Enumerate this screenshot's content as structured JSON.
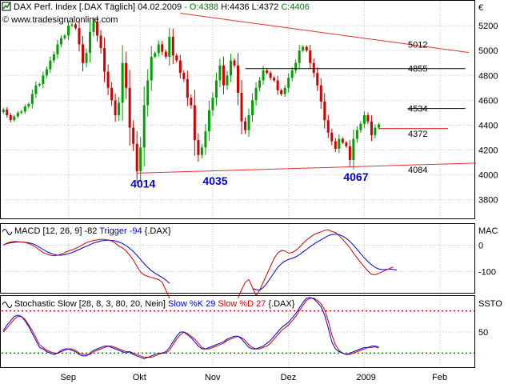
{
  "header": {
    "icon": "chart-logo-icon",
    "title": "DAX Perf. Index [.DAX  Täglich] 04.02.2009",
    "open": "- O:4388",
    "high": "H:4436",
    "low": "L:4372",
    "close": "C:4406",
    "website": "© www.tradesignalonline.com",
    "currency": "€"
  },
  "colors": {
    "up_candle": "#00a000",
    "down_candle": "#d00000",
    "trendline": "#e03030",
    "hline": "#000000",
    "macd": "#d00000",
    "trigger": "#0000d0",
    "k_line": "#0000d0",
    "d_line": "#d00000",
    "grid": "#c8c8c8",
    "low_label": "#0000cc",
    "thresh_red": "#d00000",
    "thresh_green": "#008000"
  },
  "chart_data": [
    {
      "type": "candlestick",
      "title": "DAX Perf. Index [.DAX  Täglich] 04.02.2009",
      "ylabel": "€",
      "ylim": [
        3650,
        5400
      ],
      "yticks": [
        "3800",
        "4000",
        "4200",
        "4400",
        "4600",
        "4800",
        "5000",
        "5200"
      ],
      "ytick_values": [
        3800,
        4000,
        4200,
        4400,
        4600,
        4800,
        5000,
        5200
      ],
      "xticks": [
        "Sep",
        "Okt",
        "Nov",
        "Dez",
        "2009",
        "Feb"
      ],
      "xtick_index": [
        18,
        38,
        58,
        79,
        100,
        121
      ],
      "close": [
        4525,
        4480,
        4440,
        4470,
        4500,
        4510,
        4550,
        4570,
        4650,
        4720,
        4730,
        4800,
        4850,
        4920,
        4970,
        5050,
        5100,
        5120,
        5200,
        5210,
        5180,
        5050,
        4900,
        4980,
        5150,
        5230,
        5120,
        5020,
        4830,
        4700,
        4600,
        4480,
        4580,
        4900,
        4700,
        4380,
        4250,
        4030,
        4220,
        4560,
        4760,
        4950,
        4980,
        5050,
        4990,
        4950,
        5110,
        4960,
        4920,
        4820,
        4770,
        4620,
        4560,
        4280,
        4160,
        4220,
        4350,
        4520,
        4620,
        4760,
        4880,
        4720,
        4800,
        4920,
        4880,
        4660,
        4430,
        4360,
        4480,
        4600,
        4700,
        4760,
        4840,
        4820,
        4780,
        4760,
        4680,
        4650,
        4700,
        4780,
        4840,
        4900,
        5000,
        5030,
        5000,
        4900,
        4820,
        4720,
        4590,
        4440,
        4340,
        4270,
        4210,
        4290,
        4260,
        4230,
        4120,
        4290,
        4360,
        4410,
        4480,
        4430,
        4320,
        4380,
        4406
      ],
      "events": [
        {
          "i": 37,
          "value": 4014,
          "label": "4014"
        },
        {
          "i": 57,
          "value": 4035,
          "label": "4035"
        },
        {
          "i": 96,
          "value": 4067,
          "label": "4067"
        }
      ],
      "trendlines": [
        {
          "x0": 49,
          "y0": 5300,
          "x1": 129,
          "y1": 4984,
          "label": "5012"
        },
        {
          "x0": 37,
          "y0": 4014,
          "x1": 131,
          "y1": 4095,
          "label": "4084"
        }
      ],
      "hlines": [
        {
          "x0": 67,
          "x1": 128,
          "y": 4855,
          "label": "4855"
        },
        {
          "x0": 112,
          "x1": 128,
          "y": 4534,
          "label": "4534"
        }
      ],
      "close_marker": {
        "value": 4372,
        "label": "4372"
      }
    },
    {
      "type": "line",
      "title": "MACD [12, 26, 9] -82 Trigger -94 {.DAX}",
      "ylabel": "MAC",
      "ylim": [
        -180,
        80
      ],
      "yticks": [
        "0",
        "-100"
      ],
      "ytick_values": [
        0,
        -100
      ],
      "series": [
        {
          "name": "MACD [12, 26, 9] -82",
          "values": [
            0,
            8,
            12,
            14,
            13,
            12,
            10,
            6,
            0,
            -8,
            -18,
            -28,
            -34,
            -38,
            -40,
            -38,
            -34,
            -28,
            -22,
            -18,
            -12,
            -6,
            2,
            10,
            14,
            18,
            20,
            22,
            22,
            20,
            16,
            8,
            -4,
            -10,
            -22,
            -38,
            -56,
            -80,
            -102,
            -112,
            -118,
            -122,
            -126,
            -130,
            -140,
            -170,
            -200,
            null,
            null,
            null,
            null,
            null,
            null,
            null,
            null,
            null,
            null,
            null,
            null,
            null,
            null,
            null,
            null,
            null,
            null,
            -200,
            -168,
            -140,
            -130,
            -160,
            -190,
            -170,
            -140,
            -110,
            -80,
            -50,
            -30,
            -20,
            -22,
            -30,
            -28,
            -20,
            -8,
            6,
            20,
            30,
            40,
            46,
            50,
            56,
            58,
            52,
            48,
            36,
            22,
            6,
            -10,
            -30,
            -48,
            -66,
            -82,
            -98,
            -110,
            -112,
            -106,
            -100,
            -94,
            -88,
            -82
          ]
        },
        {
          "name": "Trigger -94",
          "values": [
            0,
            6,
            9,
            11,
            12,
            12,
            11,
            9,
            6,
            0,
            -8,
            -16,
            -24,
            -30,
            -35,
            -38,
            -38,
            -36,
            -32,
            -28,
            -22,
            -16,
            -10,
            -4,
            2,
            8,
            12,
            16,
            18,
            19,
            18,
            16,
            12,
            6,
            -2,
            -12,
            -24,
            -38,
            -54,
            -70,
            -84,
            -96,
            -106,
            -114,
            -122,
            -132,
            -144,
            null,
            null,
            null,
            null,
            null,
            null,
            null,
            null,
            null,
            null,
            null,
            null,
            null,
            null,
            null,
            null,
            null,
            null,
            null,
            null,
            null,
            null,
            -164,
            -168,
            -170,
            -160,
            -144,
            -124,
            -104,
            -84,
            -70,
            -60,
            -54,
            -50,
            -44,
            -36,
            -26,
            -16,
            -6,
            4,
            12,
            20,
            28,
            36,
            40,
            42,
            40,
            34,
            26,
            14,
            0,
            -16,
            -32,
            -48,
            -62,
            -74,
            -84,
            -90,
            -92,
            -92,
            -90,
            -92,
            -94
          ]
        }
      ]
    },
    {
      "type": "line",
      "title": "Stochastic Slow [28, 8, 3, 80, 20, Nein] Slow %K 29 Slow %D 27 {.DAX}",
      "ylabel": "SSTO",
      "ylim": [
        0,
        100
      ],
      "yticks": [
        "50"
      ],
      "ytick_values": [
        50
      ],
      "thresholds": [
        {
          "value": 80,
          "color": "thresh_red"
        },
        {
          "value": 20,
          "color": "thresh_green"
        }
      ],
      "series": [
        {
          "name": "Slow %K 29",
          "values": [
            52,
            60,
            66,
            72,
            74,
            72,
            66,
            58,
            48,
            38,
            28,
            26,
            22,
            20,
            18,
            20,
            24,
            26,
            26,
            24,
            22,
            18,
            16,
            16,
            20,
            24,
            26,
            28,
            30,
            30,
            28,
            26,
            24,
            22,
            20,
            22,
            18,
            16,
            14,
            12,
            14,
            16,
            18,
            20,
            20,
            22,
            28,
            36,
            44,
            50,
            50,
            46,
            42,
            36,
            30,
            26,
            26,
            28,
            30,
            32,
            34,
            36,
            40,
            42,
            44,
            44,
            40,
            34,
            28,
            26,
            26,
            28,
            30,
            34,
            38,
            44,
            50,
            56,
            60,
            64,
            70,
            76,
            84,
            92,
            98,
            99,
            97,
            92,
            86,
            74,
            56,
            36,
            26,
            22,
            20,
            18,
            20,
            22,
            24,
            26,
            28,
            28,
            30,
            30,
            29
          ]
        },
        {
          "name": "Slow %D 27",
          "values": [
            50,
            56,
            62,
            68,
            72,
            72,
            68,
            60,
            52,
            42,
            32,
            28,
            24,
            22,
            20,
            20,
            22,
            24,
            26,
            26,
            24,
            20,
            18,
            18,
            18,
            22,
            24,
            26,
            28,
            30,
            30,
            28,
            26,
            24,
            22,
            22,
            20,
            18,
            16,
            14,
            14,
            14,
            16,
            18,
            20,
            20,
            24,
            32,
            40,
            46,
            50,
            48,
            44,
            40,
            34,
            28,
            26,
            26,
            28,
            30,
            32,
            34,
            38,
            40,
            42,
            44,
            42,
            38,
            32,
            28,
            26,
            26,
            28,
            30,
            34,
            40,
            46,
            52,
            56,
            60,
            66,
            72,
            80,
            88,
            95,
            98,
            98,
            95,
            90,
            82,
            66,
            46,
            32,
            24,
            20,
            18,
            18,
            20,
            22,
            24,
            26,
            28,
            28,
            29,
            27
          ]
        }
      ]
    }
  ],
  "xaxis_labels": [
    "Sep",
    "Okt",
    "Nov",
    "Dez",
    "2009",
    "Feb"
  ]
}
